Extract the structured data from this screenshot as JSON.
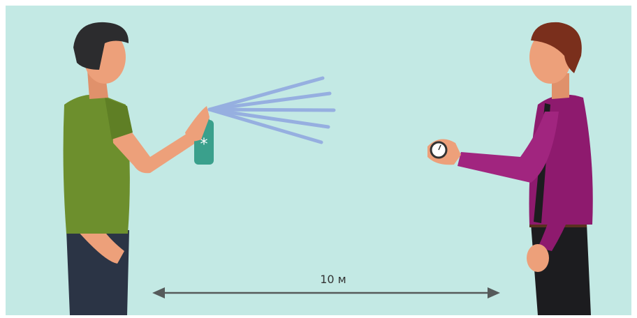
{
  "distance_label": "10 м"
}
